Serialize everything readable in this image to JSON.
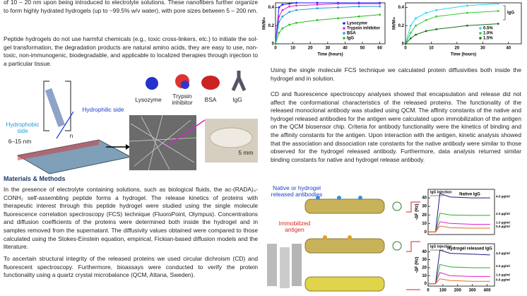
{
  "top_text": "of 10 – 20 nm upon being introduced to electrolyte solutions. These nanofibers further organize to form highly hydrated hydrogels (up to ~99.5% w/v water), with pore sizes between 5 – 200 nm.",
  "intro_paragraph": "Peptide hydrogels do not use harmful chemicals (e.g., toxic cross-linkers, etc.) to initiate the sol-gel transformation, the degradation products are natural amino acids, they are easy to use, non-toxic, non-immunogenic, biodegradable, and applicable to localized therapies through injection to a particular tissue.",
  "figure1": {
    "hydrophobic_side": "Hydrophobic side",
    "size": "6–15 nm",
    "repeat": "n",
    "hydrophilic_side": "Hydrophilic side",
    "proteins": [
      "Lysozyme",
      "Trypsin inhibitor",
      "BSA",
      "IgG"
    ],
    "scale_bar": "5 mm"
  },
  "methods": {
    "heading": "Materials & Methods",
    "paragraphs": [
      "In the presence of electrolyte containing solutions, such as biological fluids, the ac-(RADA)₄-CONH₂ self-assembling peptide forms a hydrogel. The release kinetics of proteins with therapeutic interest through this peptide hydrogel were studied using the single molecule fluorescence correlation spectroscopy (FCS) technique (FluoroPoint, Olympus). Concentrations and diffusion coefficients of the proteins were determined both inside the hydrogel and in samples removed from the supernatant. The diffusivity values obtained were compared to those calculated using the Stokes-Einstein equation, empirical, Fickian-based diffusion models and the literature.",
      "To ascertain structural integrity of the released proteins we used circular dichroism (CD) and fluorescent spectroscopy. Furthermore, bioassays were conducted to verify the protein functionality using a quartz crystal microbalance (QCM, Attana, Sweden)."
    ]
  },
  "results": {
    "fcs_note": "Using the single molecule FCS technique we calculated protein diffusivities both inside the hydrogel and in solution.",
    "paragraph": "CD and fluorescence spectroscopy analyses showed that encapsulation and release did not affect the conformational characteristics of the released proteins. The functionality of the released monoclonal antibody was studied using QCM. The affinity constants of the native and hydrogel released antibodies for the antigen were calculated upon immobilization of the antigen on the QCM biosensor chip. Criteria for antibody functionality were the kinetics of binding and the affinity constants for the antigen. Upon interaction with the antigen, kinetic analysis showed that the association and dissociation rate constants for the native antibody were similar to those observed for the hydrogel released antibody. Furthermore, data analysis returned similar binding constants for native and hydrogel release antibody."
  },
  "qcm_figure": {
    "antibodies_label": "Native or hydrogel released antibodies",
    "antigen_label": "Immobilized antigen"
  },
  "chart_data": [
    {
      "type": "line",
      "xlabel": "Time (hours)",
      "ylabel": "Mt/M∞",
      "xlim": [
        0,
        63
      ],
      "ylim": [
        0,
        0.45
      ],
      "xticks": [
        0,
        10,
        20,
        30,
        40,
        50,
        60
      ],
      "yticks": [
        0.0,
        0.2,
        0.4
      ],
      "legend": "lower right",
      "x": [
        0,
        2,
        4,
        8,
        12,
        24,
        36,
        48,
        60
      ],
      "series": [
        {
          "name": "Lysozyme",
          "color": "#1a1aff",
          "values": [
            0,
            0.4,
            0.43,
            0.44,
            0.45,
            0.45,
            0.45,
            0.45,
            0.45
          ]
        },
        {
          "name": "Trypsin inhibitor",
          "color": "#e020c8",
          "values": [
            0,
            0.3,
            0.37,
            0.41,
            0.42,
            0.43,
            0.44,
            0.44,
            0.44
          ]
        },
        {
          "name": "BSA",
          "color": "#1a9fe0",
          "values": [
            0,
            0.24,
            0.3,
            0.35,
            0.37,
            0.39,
            0.4,
            0.41,
            0.41
          ]
        },
        {
          "name": "IgG",
          "color": "#22c022",
          "values": [
            0,
            0.12,
            0.17,
            0.21,
            0.23,
            0.26,
            0.28,
            0.3,
            0.32
          ]
        }
      ]
    },
    {
      "type": "line",
      "ylabel": "Mt/M∞",
      "xlabel": "Time (hours)",
      "xlim": [
        0,
        45
      ],
      "ylim": [
        0,
        0.45
      ],
      "xticks": [
        0,
        10,
        20,
        30,
        40
      ],
      "yticks": [
        0.0,
        0.2,
        0.4
      ],
      "legend": "lower right",
      "annotation": "IgG",
      "x": [
        0,
        2,
        4,
        8,
        12,
        24,
        36
      ],
      "series": [
        {
          "name": "0.5%",
          "color": "#22d8f0",
          "values": [
            0,
            0.2,
            0.28,
            0.34,
            0.37,
            0.42,
            0.44
          ]
        },
        {
          "name": "1.0%",
          "color": "#33cc33",
          "values": [
            0,
            0.12,
            0.2,
            0.26,
            0.3,
            0.34,
            0.36
          ]
        },
        {
          "name": "1.5%",
          "color": "#1e6b1e",
          "values": [
            0,
            0.06,
            0.1,
            0.14,
            0.16,
            0.2,
            0.22
          ]
        }
      ]
    },
    {
      "type": "line",
      "title": "Native IgG",
      "ylabel": "-ΔF (Hz)",
      "annotation": "IgG injection",
      "xlim": [
        0,
        450
      ],
      "ylim": [
        -3,
        50
      ],
      "yticks": [
        0,
        10,
        20,
        30,
        40
      ],
      "legend": "right",
      "x": [
        0,
        50,
        80,
        150,
        300,
        420
      ],
      "series": [
        {
          "name": "4.0 µg/ml",
          "color": "#1a1a8c",
          "values": [
            0,
            0,
            45,
            41,
            40,
            40
          ]
        },
        {
          "name": "2.0 µg/ml",
          "color": "#22b022",
          "values": [
            0,
            0,
            22,
            20,
            19.5,
            19.5
          ]
        },
        {
          "name": "1.0 µg/ml",
          "color": "#e020c8",
          "values": [
            0,
            0,
            12,
            10,
            9,
            9
          ]
        },
        {
          "name": "0.5 µg/ml",
          "color": "#e07020",
          "values": [
            0,
            0,
            7,
            5,
            4.5,
            4.5
          ]
        }
      ]
    },
    {
      "type": "line",
      "title": "Hydrogel released IgG",
      "ylabel": "-ΔF (Hz)",
      "annotation": "IgG injection",
      "xlim": [
        0,
        450
      ],
      "ylim": [
        -3,
        50
      ],
      "xticks": [
        0,
        100,
        200,
        300,
        400
      ],
      "yticks": [
        0,
        10,
        20,
        30,
        40
      ],
      "legend": "right",
      "x": [
        0,
        50,
        80,
        150,
        300,
        420
      ],
      "series": [
        {
          "name": "4.0 µg/ml",
          "color": "#1a1a8c",
          "values": [
            0,
            0,
            42,
            38,
            37,
            36
          ]
        },
        {
          "name": "2.0 µg/ml",
          "color": "#22b022",
          "values": [
            0,
            0,
            24,
            21,
            20,
            20
          ]
        },
        {
          "name": "1.0 µg/ml",
          "color": "#e020c8",
          "values": [
            0,
            0,
            14,
            10,
            9,
            9
          ]
        },
        {
          "name": "0.5 µg/ml",
          "color": "#e07020",
          "values": [
            0,
            0,
            6,
            4,
            3,
            3
          ]
        }
      ]
    }
  ]
}
